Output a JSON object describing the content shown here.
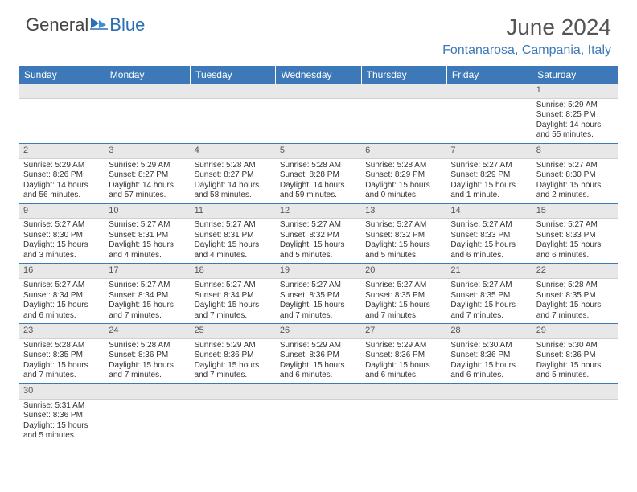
{
  "logo": {
    "general": "General",
    "blue": "Blue"
  },
  "title": "June 2024",
  "location": "Fontanarosa, Campania, Italy",
  "headers": [
    "Sunday",
    "Monday",
    "Tuesday",
    "Wednesday",
    "Thursday",
    "Friday",
    "Saturday"
  ],
  "colors": {
    "header_bg": "#3d79b8",
    "header_text": "#ffffff",
    "accent": "#3d79b8",
    "daynum_bg": "#e8e8e8",
    "text": "#333333",
    "logo_blue": "#2c6fb5"
  },
  "weeks": [
    [
      null,
      null,
      null,
      null,
      null,
      null,
      {
        "n": "1",
        "sr": "Sunrise: 5:29 AM",
        "ss": "Sunset: 8:25 PM",
        "d1": "Daylight: 14 hours",
        "d2": "and 55 minutes."
      }
    ],
    [
      {
        "n": "2",
        "sr": "Sunrise: 5:29 AM",
        "ss": "Sunset: 8:26 PM",
        "d1": "Daylight: 14 hours",
        "d2": "and 56 minutes."
      },
      {
        "n": "3",
        "sr": "Sunrise: 5:29 AM",
        "ss": "Sunset: 8:27 PM",
        "d1": "Daylight: 14 hours",
        "d2": "and 57 minutes."
      },
      {
        "n": "4",
        "sr": "Sunrise: 5:28 AM",
        "ss": "Sunset: 8:27 PM",
        "d1": "Daylight: 14 hours",
        "d2": "and 58 minutes."
      },
      {
        "n": "5",
        "sr": "Sunrise: 5:28 AM",
        "ss": "Sunset: 8:28 PM",
        "d1": "Daylight: 14 hours",
        "d2": "and 59 minutes."
      },
      {
        "n": "6",
        "sr": "Sunrise: 5:28 AM",
        "ss": "Sunset: 8:29 PM",
        "d1": "Daylight: 15 hours",
        "d2": "and 0 minutes."
      },
      {
        "n": "7",
        "sr": "Sunrise: 5:27 AM",
        "ss": "Sunset: 8:29 PM",
        "d1": "Daylight: 15 hours",
        "d2": "and 1 minute."
      },
      {
        "n": "8",
        "sr": "Sunrise: 5:27 AM",
        "ss": "Sunset: 8:30 PM",
        "d1": "Daylight: 15 hours",
        "d2": "and 2 minutes."
      }
    ],
    [
      {
        "n": "9",
        "sr": "Sunrise: 5:27 AM",
        "ss": "Sunset: 8:30 PM",
        "d1": "Daylight: 15 hours",
        "d2": "and 3 minutes."
      },
      {
        "n": "10",
        "sr": "Sunrise: 5:27 AM",
        "ss": "Sunset: 8:31 PM",
        "d1": "Daylight: 15 hours",
        "d2": "and 4 minutes."
      },
      {
        "n": "11",
        "sr": "Sunrise: 5:27 AM",
        "ss": "Sunset: 8:31 PM",
        "d1": "Daylight: 15 hours",
        "d2": "and 4 minutes."
      },
      {
        "n": "12",
        "sr": "Sunrise: 5:27 AM",
        "ss": "Sunset: 8:32 PM",
        "d1": "Daylight: 15 hours",
        "d2": "and 5 minutes."
      },
      {
        "n": "13",
        "sr": "Sunrise: 5:27 AM",
        "ss": "Sunset: 8:32 PM",
        "d1": "Daylight: 15 hours",
        "d2": "and 5 minutes."
      },
      {
        "n": "14",
        "sr": "Sunrise: 5:27 AM",
        "ss": "Sunset: 8:33 PM",
        "d1": "Daylight: 15 hours",
        "d2": "and 6 minutes."
      },
      {
        "n": "15",
        "sr": "Sunrise: 5:27 AM",
        "ss": "Sunset: 8:33 PM",
        "d1": "Daylight: 15 hours",
        "d2": "and 6 minutes."
      }
    ],
    [
      {
        "n": "16",
        "sr": "Sunrise: 5:27 AM",
        "ss": "Sunset: 8:34 PM",
        "d1": "Daylight: 15 hours",
        "d2": "and 6 minutes."
      },
      {
        "n": "17",
        "sr": "Sunrise: 5:27 AM",
        "ss": "Sunset: 8:34 PM",
        "d1": "Daylight: 15 hours",
        "d2": "and 7 minutes."
      },
      {
        "n": "18",
        "sr": "Sunrise: 5:27 AM",
        "ss": "Sunset: 8:34 PM",
        "d1": "Daylight: 15 hours",
        "d2": "and 7 minutes."
      },
      {
        "n": "19",
        "sr": "Sunrise: 5:27 AM",
        "ss": "Sunset: 8:35 PM",
        "d1": "Daylight: 15 hours",
        "d2": "and 7 minutes."
      },
      {
        "n": "20",
        "sr": "Sunrise: 5:27 AM",
        "ss": "Sunset: 8:35 PM",
        "d1": "Daylight: 15 hours",
        "d2": "and 7 minutes."
      },
      {
        "n": "21",
        "sr": "Sunrise: 5:27 AM",
        "ss": "Sunset: 8:35 PM",
        "d1": "Daylight: 15 hours",
        "d2": "and 7 minutes."
      },
      {
        "n": "22",
        "sr": "Sunrise: 5:28 AM",
        "ss": "Sunset: 8:35 PM",
        "d1": "Daylight: 15 hours",
        "d2": "and 7 minutes."
      }
    ],
    [
      {
        "n": "23",
        "sr": "Sunrise: 5:28 AM",
        "ss": "Sunset: 8:35 PM",
        "d1": "Daylight: 15 hours",
        "d2": "and 7 minutes."
      },
      {
        "n": "24",
        "sr": "Sunrise: 5:28 AM",
        "ss": "Sunset: 8:36 PM",
        "d1": "Daylight: 15 hours",
        "d2": "and 7 minutes."
      },
      {
        "n": "25",
        "sr": "Sunrise: 5:29 AM",
        "ss": "Sunset: 8:36 PM",
        "d1": "Daylight: 15 hours",
        "d2": "and 7 minutes."
      },
      {
        "n": "26",
        "sr": "Sunrise: 5:29 AM",
        "ss": "Sunset: 8:36 PM",
        "d1": "Daylight: 15 hours",
        "d2": "and 6 minutes."
      },
      {
        "n": "27",
        "sr": "Sunrise: 5:29 AM",
        "ss": "Sunset: 8:36 PM",
        "d1": "Daylight: 15 hours",
        "d2": "and 6 minutes."
      },
      {
        "n": "28",
        "sr": "Sunrise: 5:30 AM",
        "ss": "Sunset: 8:36 PM",
        "d1": "Daylight: 15 hours",
        "d2": "and 6 minutes."
      },
      {
        "n": "29",
        "sr": "Sunrise: 5:30 AM",
        "ss": "Sunset: 8:36 PM",
        "d1": "Daylight: 15 hours",
        "d2": "and 5 minutes."
      }
    ],
    [
      {
        "n": "30",
        "sr": "Sunrise: 5:31 AM",
        "ss": "Sunset: 8:36 PM",
        "d1": "Daylight: 15 hours",
        "d2": "and 5 minutes."
      },
      null,
      null,
      null,
      null,
      null,
      null
    ]
  ]
}
